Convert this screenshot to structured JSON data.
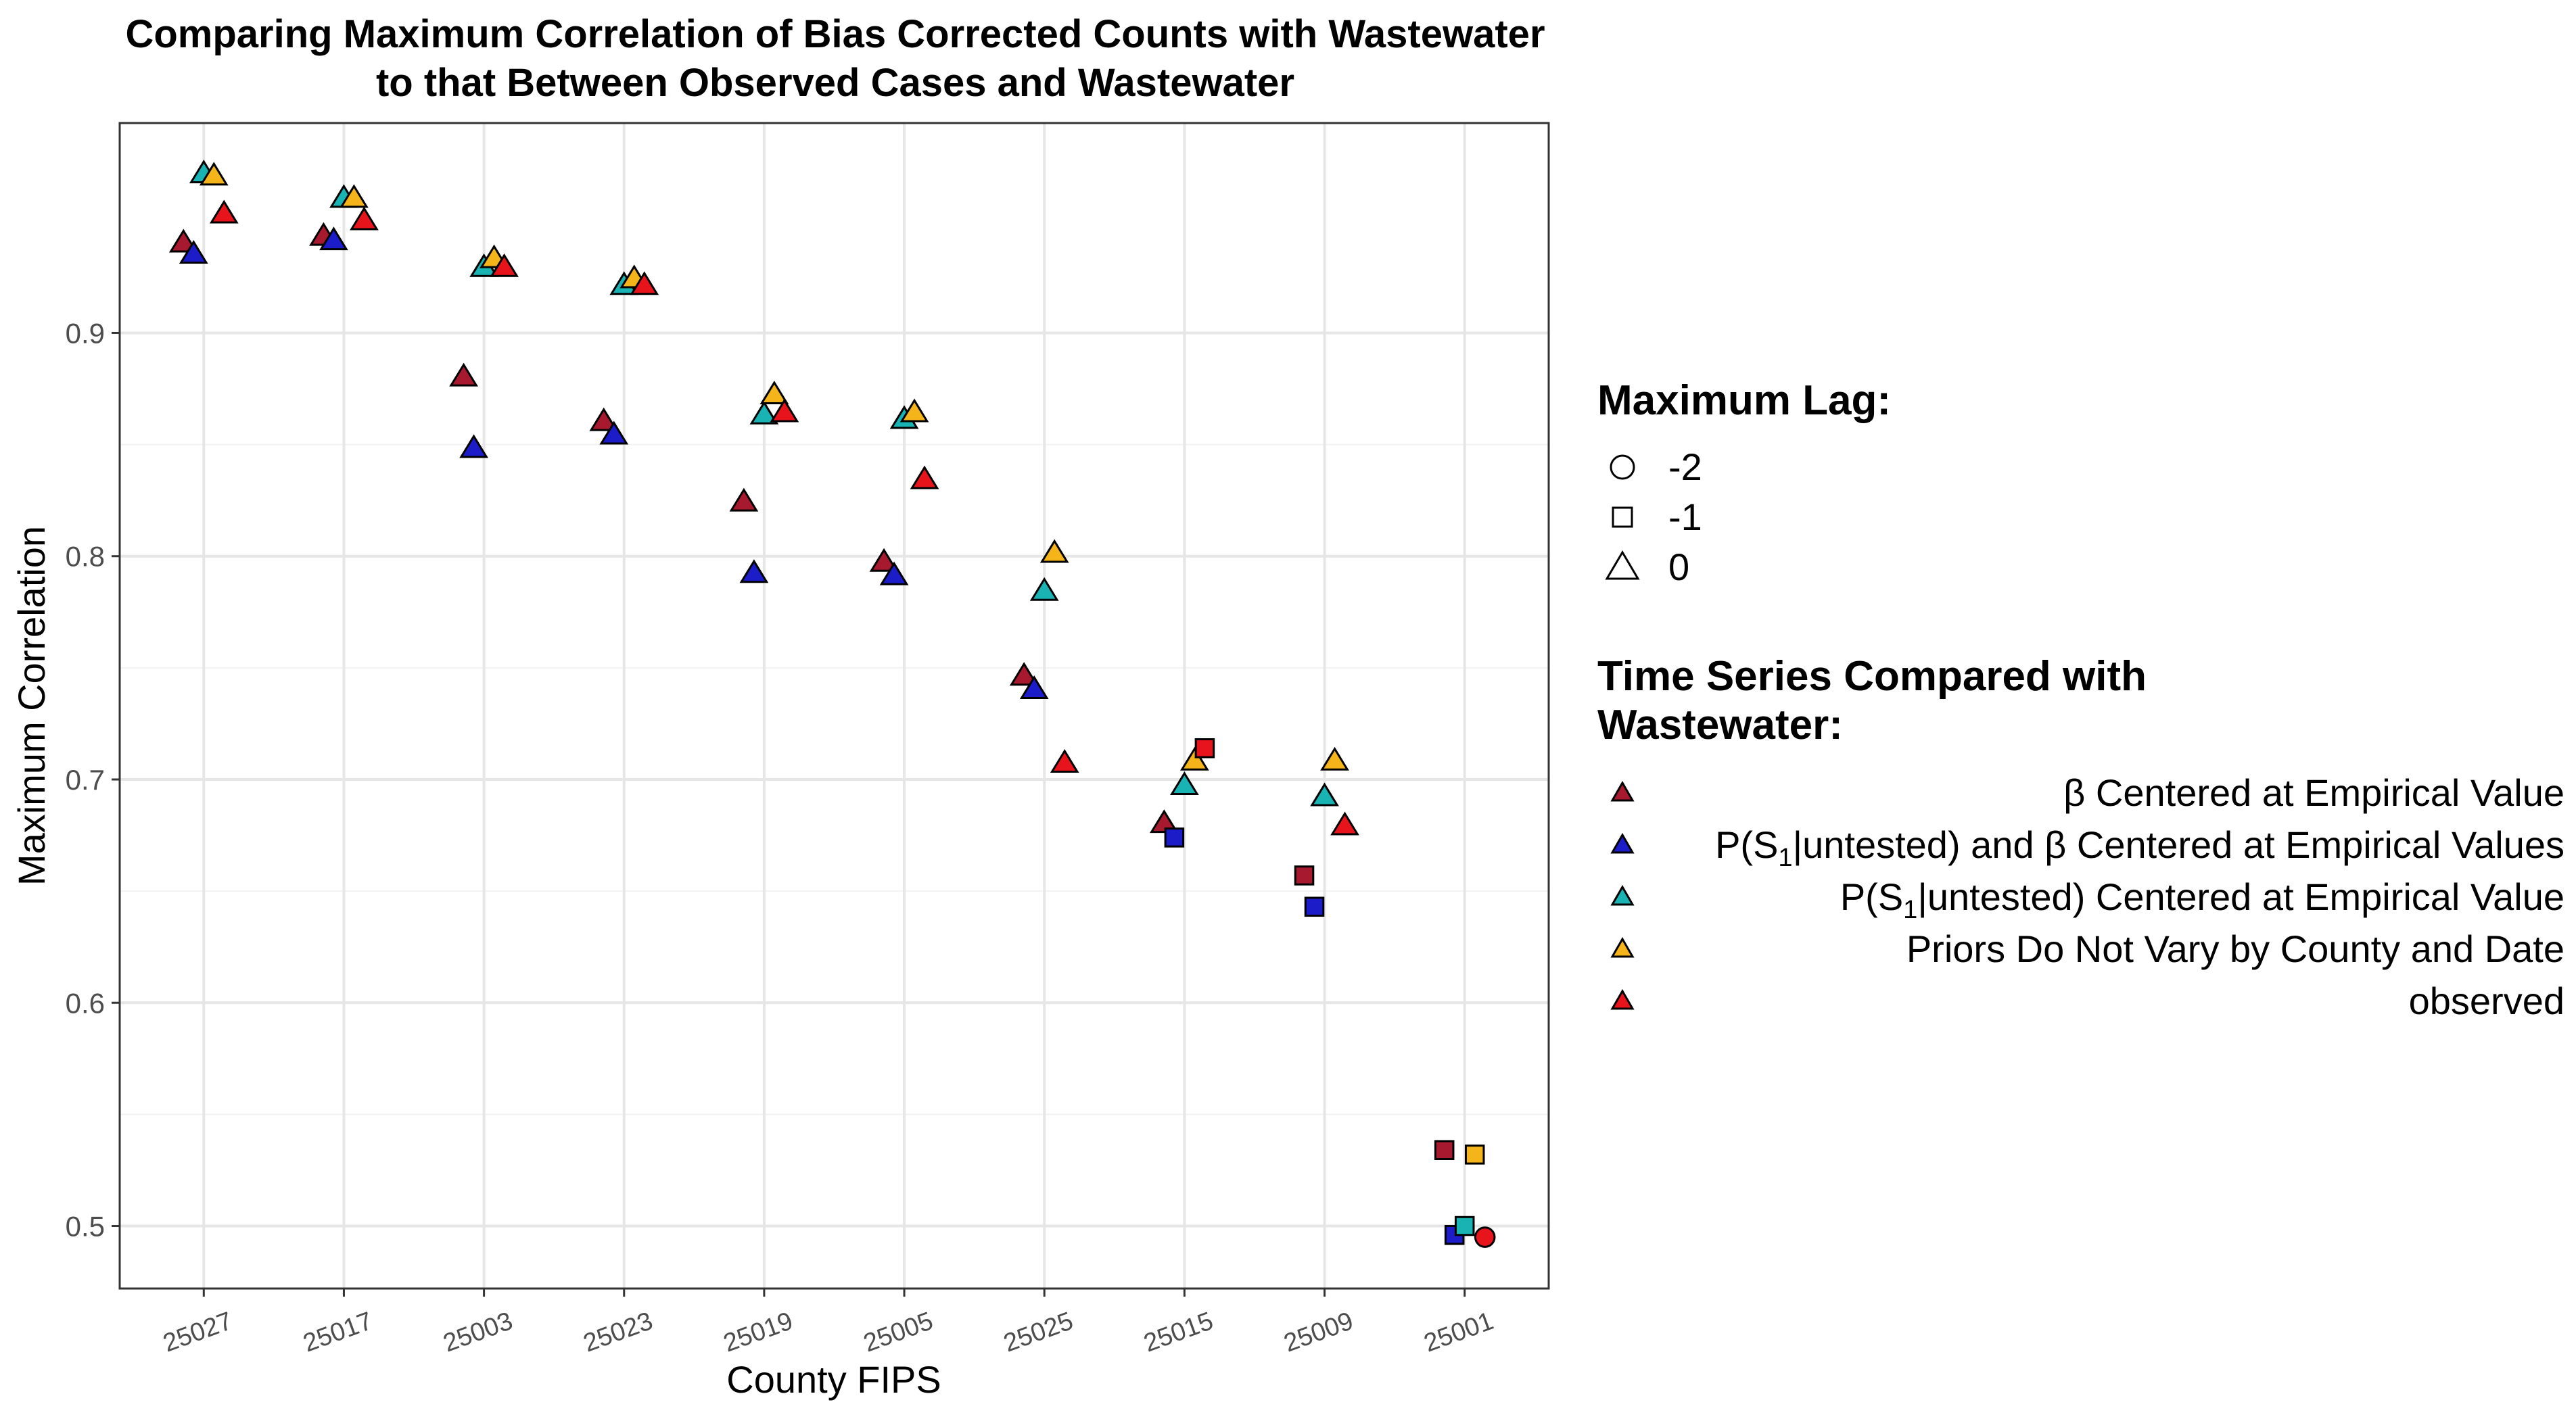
{
  "title": "Comparing Maximum Correlation of Bias Corrected Counts with Wastewater",
  "subtitle": "to that Between Observed Cases and Wastewater",
  "chart_data": {
    "type": "scatter",
    "title": "Comparing Maximum Correlation of Bias Corrected Counts with Wastewater to that Between Observed Cases and Wastewater",
    "xlabel": "County FIPS",
    "ylabel": "Maximum Correlation",
    "categories": [
      "25027",
      "25017",
      "25003",
      "25023",
      "25019",
      "25005",
      "25025",
      "25015",
      "25009",
      "25001"
    ],
    "ylim": [
      0.472,
      0.994
    ],
    "yticks": [
      "0.5",
      "0.6",
      "0.7",
      "0.8",
      "0.9"
    ],
    "grid": true,
    "legend_position": "right",
    "shape_legend": {
      "title": "Maximum Lag:",
      "entries": [
        {
          "label": "-2",
          "shape": "circle"
        },
        {
          "label": "-1",
          "shape": "square"
        },
        {
          "label": "0",
          "shape": "triangle"
        }
      ]
    },
    "color_legend": {
      "title_line1": "Time Series Compared with",
      "title_line2": "Wastewater:",
      "entries": [
        {
          "key": "beta",
          "label": "β Centered at Empirical Value",
          "color": "#a6192e"
        },
        {
          "key": "pbeta",
          "label_pre": "P(S",
          "label_sub": "1",
          "label_post": "|untested) and β Centered at Empirical Values",
          "color": "#1c1cc8"
        },
        {
          "key": "p",
          "label_pre": "P(S",
          "label_sub": "1",
          "label_post": "|untested) Centered at Empirical Value",
          "color": "#1ab3b3"
        },
        {
          "key": "priors",
          "label": "Priors Do Not Vary by County and Date",
          "color": "#f4b41a"
        },
        {
          "key": "observed",
          "label": "observed",
          "color": "#e8141b"
        }
      ]
    },
    "series": [
      {
        "key": "beta",
        "points": [
          {
            "x": "25027",
            "y": 0.94,
            "lag": 0
          },
          {
            "x": "25017",
            "y": 0.943,
            "lag": 0
          },
          {
            "x": "25003",
            "y": 0.88,
            "lag": 0
          },
          {
            "x": "25023",
            "y": 0.86,
            "lag": 0
          },
          {
            "x": "25019",
            "y": 0.824,
            "lag": 0
          },
          {
            "x": "25005",
            "y": 0.797,
            "lag": 0
          },
          {
            "x": "25025",
            "y": 0.746,
            "lag": 0
          },
          {
            "x": "25015",
            "y": 0.68,
            "lag": 0
          },
          {
            "x": "25009",
            "y": 0.657,
            "lag": -1
          },
          {
            "x": "25001",
            "y": 0.534,
            "lag": -1
          }
        ]
      },
      {
        "key": "pbeta",
        "points": [
          {
            "x": "25027",
            "y": 0.935,
            "lag": 0
          },
          {
            "x": "25017",
            "y": 0.941,
            "lag": 0
          },
          {
            "x": "25003",
            "y": 0.848,
            "lag": 0
          },
          {
            "x": "25023",
            "y": 0.854,
            "lag": 0
          },
          {
            "x": "25019",
            "y": 0.792,
            "lag": 0
          },
          {
            "x": "25005",
            "y": 0.791,
            "lag": 0
          },
          {
            "x": "25025",
            "y": 0.74,
            "lag": 0
          },
          {
            "x": "25015",
            "y": 0.674,
            "lag": -1
          },
          {
            "x": "25009",
            "y": 0.643,
            "lag": -1
          },
          {
            "x": "25001",
            "y": 0.496,
            "lag": -1
          }
        ]
      },
      {
        "key": "p",
        "points": [
          {
            "x": "25027",
            "y": 0.971,
            "lag": 0
          },
          {
            "x": "25017",
            "y": 0.96,
            "lag": 0
          },
          {
            "x": "25003",
            "y": 0.929,
            "lag": 0
          },
          {
            "x": "25023",
            "y": 0.921,
            "lag": 0
          },
          {
            "x": "25019",
            "y": 0.863,
            "lag": 0
          },
          {
            "x": "25005",
            "y": 0.861,
            "lag": 0
          },
          {
            "x": "25025",
            "y": 0.784,
            "lag": 0
          },
          {
            "x": "25015",
            "y": 0.697,
            "lag": 0
          },
          {
            "x": "25009",
            "y": 0.692,
            "lag": 0
          },
          {
            "x": "25001",
            "y": 0.5,
            "lag": -1
          }
        ]
      },
      {
        "key": "priors",
        "points": [
          {
            "x": "25027",
            "y": 0.97,
            "lag": 0
          },
          {
            "x": "25017",
            "y": 0.96,
            "lag": 0
          },
          {
            "x": "25003",
            "y": 0.933,
            "lag": 0
          },
          {
            "x": "25023",
            "y": 0.924,
            "lag": 0
          },
          {
            "x": "25019",
            "y": 0.872,
            "lag": 0
          },
          {
            "x": "25005",
            "y": 0.864,
            "lag": 0
          },
          {
            "x": "25025",
            "y": 0.801,
            "lag": 0
          },
          {
            "x": "25015",
            "y": 0.708,
            "lag": 0
          },
          {
            "x": "25009",
            "y": 0.708,
            "lag": 0
          },
          {
            "x": "25001",
            "y": 0.532,
            "lag": -1
          }
        ]
      },
      {
        "key": "observed",
        "points": [
          {
            "x": "25027",
            "y": 0.953,
            "lag": 0
          },
          {
            "x": "25017",
            "y": 0.95,
            "lag": 0
          },
          {
            "x": "25003",
            "y": 0.929,
            "lag": 0
          },
          {
            "x": "25023",
            "y": 0.921,
            "lag": 0
          },
          {
            "x": "25019",
            "y": 0.864,
            "lag": 0
          },
          {
            "x": "25005",
            "y": 0.834,
            "lag": 0
          },
          {
            "x": "25025",
            "y": 0.707,
            "lag": 0
          },
          {
            "x": "25015",
            "y": 0.714,
            "lag": -1
          },
          {
            "x": "25009",
            "y": 0.679,
            "lag": 0
          },
          {
            "x": "25001",
            "y": 0.495,
            "lag": -2
          }
        ]
      }
    ]
  }
}
